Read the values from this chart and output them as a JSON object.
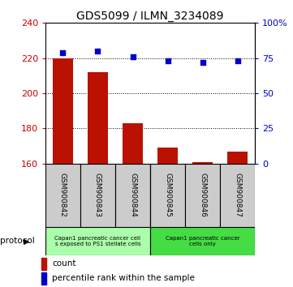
{
  "title": "GDS5099 / ILMN_3234089",
  "samples": [
    "GSM900842",
    "GSM900843",
    "GSM900844",
    "GSM900845",
    "GSM900846",
    "GSM900847"
  ],
  "counts": [
    220,
    212,
    183,
    169,
    161,
    167
  ],
  "percentiles": [
    79,
    80,
    76,
    73,
    72,
    73
  ],
  "ylim_left": [
    160,
    240
  ],
  "ylim_right": [
    0,
    100
  ],
  "yticks_left": [
    160,
    180,
    200,
    220,
    240
  ],
  "yticks_right": [
    0,
    25,
    50,
    75,
    100
  ],
  "ytick_labels_right": [
    "0",
    "25",
    "50",
    "75",
    "100%"
  ],
  "bar_color": "#bb1100",
  "dot_color": "#0000cc",
  "bg_color": "#ffffff",
  "sample_box_color": "#cccccc",
  "proto_color_left": "#aaffaa",
  "proto_color_right": "#44dd44",
  "legend_count_label": "count",
  "legend_percentile_label": "percentile rank within the sample",
  "protocol_label": "protocol",
  "left_axis_color": "#cc0000",
  "right_axis_color": "#0000cc",
  "grid_dotted_vals": [
    180,
    200,
    220
  ],
  "proto_text_left": "Capan1 pancreatic cancer cell\ns exposed to PS1 stellate cells",
  "proto_text_right": "Capan1 pancreatic cancer\ncells only"
}
